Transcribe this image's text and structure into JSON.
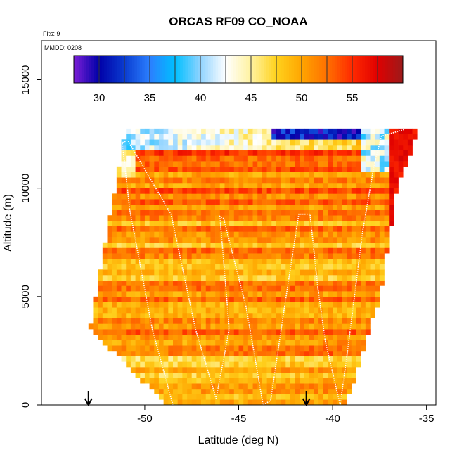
{
  "chart_data": {
    "type": "heatmap",
    "title": "ORCAS RF09 CO_NOAA",
    "xlabel": "Latitude (deg N)",
    "ylabel": "Altitude (m)",
    "xlim": [
      -55.5,
      -34.5
    ],
    "ylim": [
      0,
      16800
    ],
    "x_ticks": [
      -50,
      -45,
      -40,
      -35
    ],
    "x_tick_labels": [
      "-50",
      "-45",
      "-40",
      "-35"
    ],
    "y_ticks": [
      0,
      5000,
      10000,
      15000
    ],
    "y_tick_labels": [
      "0",
      "5000",
      "10000",
      "15000"
    ],
    "flights_note": "Flts: 9",
    "date_note": "MMDD: 0208",
    "colorbar": {
      "min": 27.5,
      "max": 60,
      "ticks": [
        30,
        35,
        40,
        45,
        50,
        55
      ],
      "tick_labels": [
        "30",
        "35",
        "40",
        "45",
        "50",
        "55"
      ],
      "colors": [
        "#7a1fd6",
        "#0000a8",
        "#0a3cd0",
        "#2b7fff",
        "#00bfff",
        "#8fd3ff",
        "#ffffff",
        "#fff2a0",
        "#ffd21e",
        "#ffa500",
        "#ff7000",
        "#ff2a00",
        "#e00000",
        "#9c1a1a"
      ]
    },
    "field": {
      "lat_min": -53,
      "lat_max": -35.5,
      "alt_max": 12700,
      "row_height_m": 250,
      "col_width_deg": 0.25,
      "left_edge": [
        [
          0,
          -48.7
        ],
        [
          3500,
          -52.8
        ],
        [
          7500,
          -52
        ],
        [
          12200,
          -51
        ]
      ],
      "right_edge": [
        [
          0,
          -39.4
        ],
        [
          5000,
          -37.6
        ],
        [
          10000,
          -36.7
        ],
        [
          12700,
          -35.5
        ]
      ],
      "base_value": 50.5,
      "high_band_value": 53,
      "low_band_value": 47
    },
    "flight_track": [
      [
        -48.5,
        0
      ],
      [
        -49.6,
        3500
      ],
      [
        -50.8,
        9000
      ],
      [
        -51.2,
        12100
      ],
      [
        -50.9,
        12200
      ],
      [
        -48.6,
        8800
      ],
      [
        -47.3,
        3500
      ],
      [
        -46.2,
        300
      ],
      [
        -45.5,
        3500
      ],
      [
        -46,
        8700
      ],
      [
        -45.8,
        8600
      ],
      [
        -44.6,
        4500
      ],
      [
        -43.7,
        0
      ],
      [
        -43.3,
        200
      ],
      [
        -42.6,
        4300
      ],
      [
        -41.8,
        8800
      ],
      [
        -41.2,
        8800
      ],
      [
        -40.8,
        5500
      ],
      [
        -40.4,
        3000
      ],
      [
        -39.6,
        0
      ],
      [
        -39.2,
        2500
      ],
      [
        -38.4,
        8000
      ],
      [
        -37.8,
        11000
      ],
      [
        -37.4,
        12400
      ],
      [
        -36.2,
        12700
      ]
    ],
    "markers_lat": [
      -53,
      -41.4
    ]
  }
}
